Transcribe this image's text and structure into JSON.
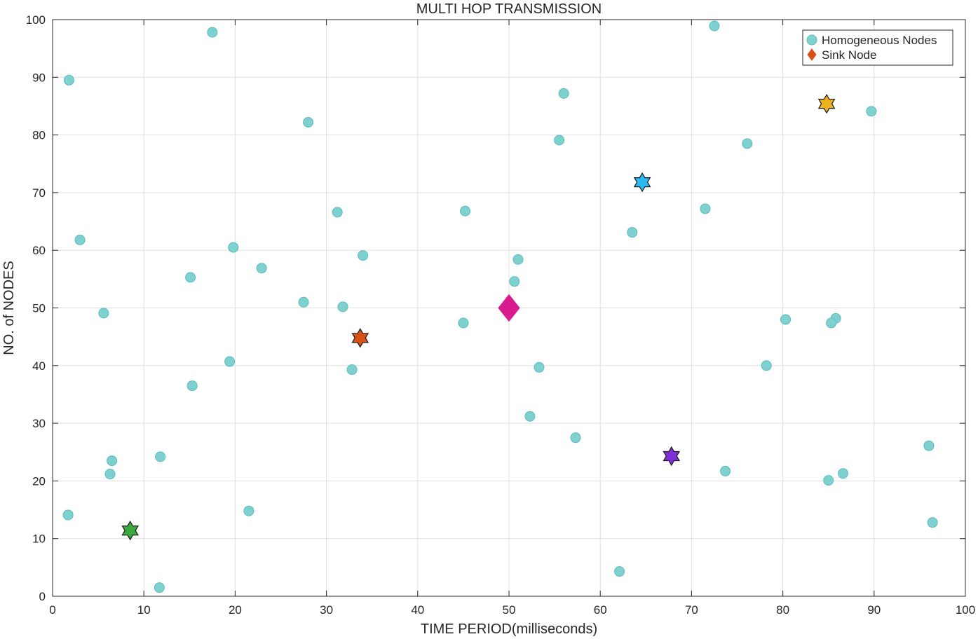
{
  "chart_data": {
    "type": "scatter",
    "title": "MULTI HOP TRANSMISSION",
    "xlabel": "TIME PERIOD(milliseconds)",
    "ylabel": "NO. of NODES",
    "xlim": [
      0,
      100
    ],
    "ylim": [
      0,
      100
    ],
    "xticks": [
      "0",
      "10",
      "20",
      "30",
      "40",
      "50",
      "60",
      "70",
      "80",
      "90",
      "100"
    ],
    "yticks": [
      "0",
      "10",
      "20",
      "30",
      "40",
      "50",
      "60",
      "70",
      "80",
      "90",
      "100"
    ],
    "grid": true,
    "legend_position": "top-right",
    "series": [
      {
        "name": "Homogeneous Nodes",
        "marker": "circle",
        "color": "#7fd1d0",
        "edge_color": "#5bbcbb",
        "points": [
          [
            1.8,
            89.5
          ],
          [
            17.5,
            97.8
          ],
          [
            72.5,
            98.9
          ],
          [
            28,
            82.2
          ],
          [
            56,
            87.2
          ],
          [
            89.7,
            84.1
          ],
          [
            55.5,
            79.1
          ],
          [
            76.1,
            78.5
          ],
          [
            3,
            61.8
          ],
          [
            31.2,
            66.6
          ],
          [
            45.2,
            66.8
          ],
          [
            71.5,
            67.2
          ],
          [
            63.5,
            63.1
          ],
          [
            19.8,
            60.5
          ],
          [
            34,
            59.1
          ],
          [
            22.9,
            56.9
          ],
          [
            51,
            58.4
          ],
          [
            15.1,
            55.3
          ],
          [
            50.6,
            54.6
          ],
          [
            5.6,
            49.1
          ],
          [
            27.5,
            51
          ],
          [
            31.8,
            50.2
          ],
          [
            45,
            47.4
          ],
          [
            80.3,
            48
          ],
          [
            85.8,
            48.2
          ],
          [
            85.3,
            47.4
          ],
          [
            19.4,
            40.7
          ],
          [
            32.8,
            39.3
          ],
          [
            53.3,
            39.7
          ],
          [
            78.2,
            40
          ],
          [
            15.3,
            36.5
          ],
          [
            52.3,
            31.2
          ],
          [
            57.3,
            27.5
          ],
          [
            96,
            26.1
          ],
          [
            6.5,
            23.5
          ],
          [
            11.8,
            24.2
          ],
          [
            6.3,
            21.2
          ],
          [
            73.7,
            21.7
          ],
          [
            86.6,
            21.3
          ],
          [
            85,
            20.1
          ],
          [
            1.7,
            14.1
          ],
          [
            21.5,
            14.8
          ],
          [
            96.4,
            12.8
          ],
          [
            62.1,
            4.3
          ],
          [
            11.7,
            1.5
          ]
        ]
      },
      {
        "name": "Sink Node",
        "marker": "diamond",
        "color": "#d91b8f",
        "legend_color": "#d95319",
        "points": [
          [
            50,
            50
          ]
        ]
      },
      {
        "name": "",
        "marker": "hexagram",
        "points": [
          {
            "x": 84.8,
            "y": 85.4,
            "color": "#edb120"
          },
          {
            "x": 64.6,
            "y": 71.8,
            "color": "#2fb8f0"
          },
          {
            "x": 33.7,
            "y": 44.8,
            "color": "#d95319"
          },
          {
            "x": 67.8,
            "y": 24.3,
            "color": "#7e2fd8"
          },
          {
            "x": 8.5,
            "y": 11.4,
            "color": "#3aa83a"
          }
        ]
      }
    ]
  }
}
